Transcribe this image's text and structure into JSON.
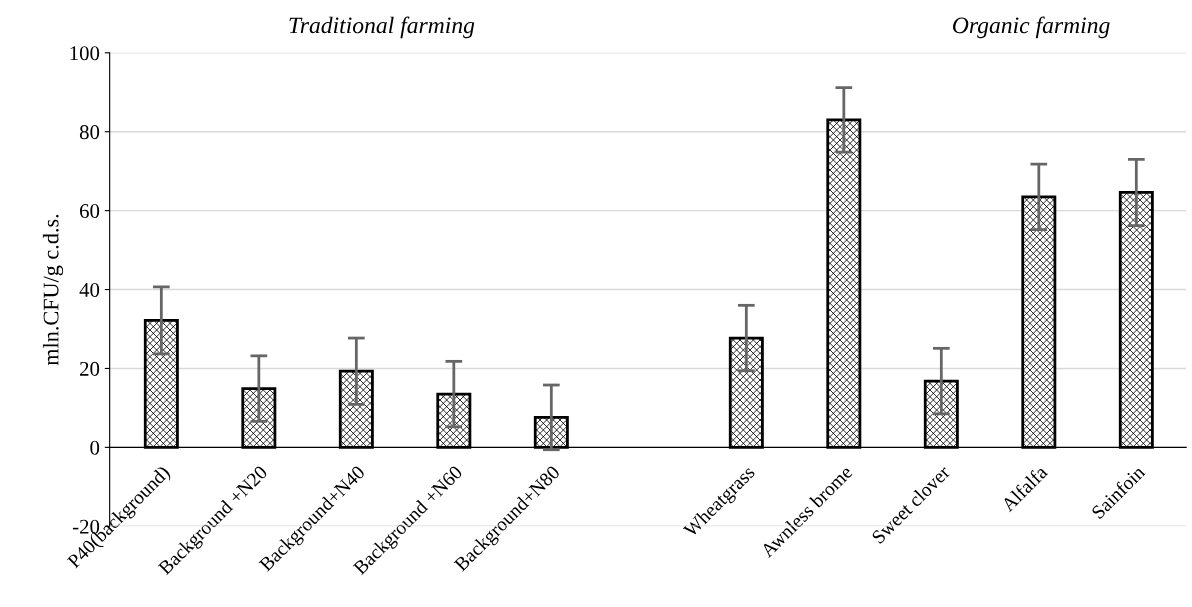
{
  "chart_data": {
    "type": "bar",
    "ylabel": "mln.CFU/g c.d.s.",
    "categories": [
      "P40(background)",
      "Background +N20",
      "Background+N40",
      "Background +N60",
      "Background+N80",
      null,
      "Wheatgrass",
      "Awnless brome",
      "Sweet clover",
      "Alfalfa",
      "Sainfoin"
    ],
    "values": [
      32.2,
      14.9,
      19.3,
      13.5,
      7.6,
      null,
      27.7,
      83.0,
      16.8,
      63.5,
      64.6
    ],
    "errors": [
      8.5,
      8.3,
      8.4,
      8.3,
      8.2,
      null,
      8.3,
      8.2,
      8.3,
      8.3,
      8.4
    ],
    "color": "#000000",
    "ylim": [
      -20,
      100
    ],
    "yticks": [
      -20,
      0,
      20,
      40,
      60,
      80,
      100
    ],
    "grid": "y",
    "annotations": [
      "Traditional farming",
      "Organic farming"
    ]
  }
}
